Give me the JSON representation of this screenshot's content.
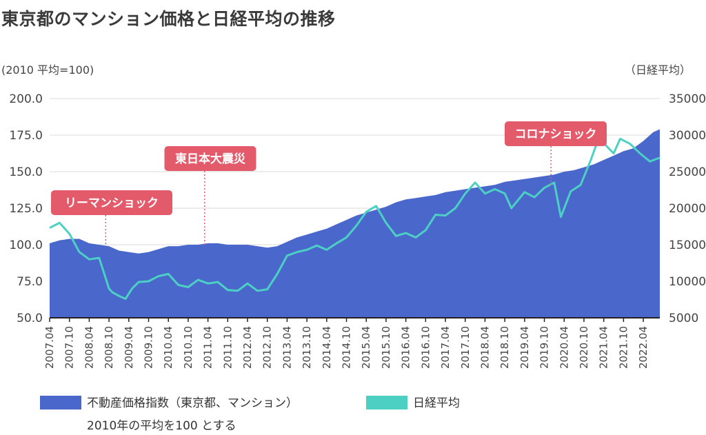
{
  "title": "東京都のマンション価格と日経平均の推移",
  "unit_left": "(2010 平均=100)",
  "unit_right": "（日経平均）",
  "legend": {
    "series1_line1": "不動産価格指数（東京都、マンション）",
    "series1_line2": "2010年の平均を100 とする",
    "series2": "日経平均"
  },
  "colors": {
    "area": "#4a67cc",
    "line": "#4dd0c4",
    "annotation": "#e35a6b",
    "grid": "#e6e6e6"
  },
  "chart_data": {
    "type": "area+line",
    "title": "東京都のマンション価格と日経平均の推移",
    "x_label": "",
    "x_ticks": [
      "2007.04",
      "2007.10",
      "2008.04",
      "2008.10",
      "2009.04",
      "2009.10",
      "2010.04",
      "2010.10",
      "2011.04",
      "2011.10",
      "2012.04",
      "2012.10",
      "2013.04",
      "2013.10",
      "2014.04",
      "2014.10",
      "2015.04",
      "2015.10",
      "2016.04",
      "2016.10",
      "2017.04",
      "2017.10",
      "2018.04",
      "2018.10",
      "2019.04",
      "2019.10",
      "2020.04",
      "2020.10",
      "2021.04",
      "2021.10",
      "2022.04"
    ],
    "y_left": {
      "label": "(2010 平均=100)",
      "range": [
        50,
        200
      ],
      "ticks": [
        "50.0",
        "75.0",
        "100.0",
        "125.0",
        "150.0",
        "175.0",
        "200.0"
      ]
    },
    "y_right": {
      "label": "（日経平均）",
      "range": [
        5000,
        35000
      ],
      "ticks": [
        "5000",
        "10000",
        "15000",
        "20000",
        "25000",
        "30000",
        "35000"
      ]
    },
    "x_range": [
      "2007-04",
      "2022-09"
    ],
    "series": [
      {
        "name": "不動産価格指数（東京都、マンション）",
        "type": "area",
        "axis": "left",
        "x": [
          "2007-04",
          "2007-07",
          "2007-10",
          "2008-01",
          "2008-04",
          "2008-07",
          "2008-10",
          "2009-01",
          "2009-04",
          "2009-07",
          "2009-10",
          "2010-01",
          "2010-04",
          "2010-07",
          "2010-10",
          "2011-01",
          "2011-04",
          "2011-07",
          "2011-10",
          "2012-01",
          "2012-04",
          "2012-07",
          "2012-10",
          "2013-01",
          "2013-04",
          "2013-07",
          "2013-10",
          "2014-01",
          "2014-04",
          "2014-07",
          "2014-10",
          "2015-01",
          "2015-04",
          "2015-07",
          "2015-10",
          "2016-01",
          "2016-04",
          "2016-07",
          "2016-10",
          "2017-01",
          "2017-04",
          "2017-07",
          "2017-10",
          "2018-01",
          "2018-04",
          "2018-07",
          "2018-10",
          "2019-01",
          "2019-04",
          "2019-07",
          "2019-10",
          "2020-01",
          "2020-04",
          "2020-07",
          "2020-10",
          "2021-01",
          "2021-04",
          "2021-07",
          "2021-10",
          "2022-01",
          "2022-04",
          "2022-07",
          "2022-09"
        ],
        "values": [
          101,
          103,
          104,
          104,
          101,
          100,
          99,
          96,
          95,
          94,
          95,
          97,
          99,
          99,
          100,
          100,
          101,
          101,
          100,
          100,
          100,
          99,
          98,
          99,
          102,
          105,
          107,
          109,
          111,
          114,
          117,
          120,
          122,
          124,
          126,
          129,
          131,
          132,
          133,
          134,
          136,
          137,
          138,
          139,
          140,
          141,
          143,
          144,
          145,
          146,
          147,
          148,
          150,
          151,
          153,
          155,
          158,
          161,
          164,
          166,
          171,
          177,
          179
        ]
      },
      {
        "name": "日経平均",
        "type": "line",
        "axis": "right",
        "x": [
          "2007-04",
          "2007-07",
          "2007-10",
          "2008-01",
          "2008-04",
          "2008-07",
          "2008-10",
          "2008-11",
          "2009-01",
          "2009-03",
          "2009-05",
          "2009-07",
          "2009-10",
          "2010-01",
          "2010-04",
          "2010-07",
          "2010-10",
          "2011-01",
          "2011-04",
          "2011-07",
          "2011-10",
          "2012-01",
          "2012-04",
          "2012-07",
          "2012-10",
          "2013-01",
          "2013-04",
          "2013-07",
          "2013-10",
          "2014-01",
          "2014-04",
          "2014-07",
          "2014-10",
          "2015-01",
          "2015-04",
          "2015-07",
          "2015-10",
          "2016-01",
          "2016-04",
          "2016-07",
          "2016-10",
          "2017-01",
          "2017-04",
          "2017-07",
          "2017-10",
          "2018-01",
          "2018-04",
          "2018-07",
          "2018-10",
          "2018-12",
          "2019-04",
          "2019-07",
          "2019-10",
          "2020-01",
          "2020-03",
          "2020-06",
          "2020-09",
          "2020-12",
          "2021-02",
          "2021-04",
          "2021-07",
          "2021-09",
          "2021-12",
          "2022-03",
          "2022-06",
          "2022-09"
        ],
        "values": [
          17300,
          18000,
          16500,
          14000,
          13000,
          13200,
          9000,
          8500,
          8000,
          7600,
          9000,
          9900,
          10000,
          10700,
          11000,
          9500,
          9200,
          10200,
          9700,
          9900,
          8800,
          8700,
          9700,
          8700,
          8900,
          11000,
          13500,
          14000,
          14300,
          14900,
          14300,
          15200,
          16000,
          17600,
          19500,
          20300,
          18000,
          16200,
          16600,
          16000,
          17000,
          19100,
          19000,
          20000,
          22000,
          23500,
          22000,
          22600,
          22000,
          20000,
          22200,
          21500,
          22800,
          23500,
          18800,
          22300,
          23200,
          26500,
          29000,
          28900,
          27500,
          29500,
          28800,
          27500,
          26400,
          26900
        ]
      }
    ],
    "annotations": [
      {
        "label": "リーマンショック",
        "x": "2008-09"
      },
      {
        "label": "東日本大震災",
        "x": "2011-03"
      },
      {
        "label": "コロナショック",
        "x": "2019-12"
      }
    ]
  }
}
